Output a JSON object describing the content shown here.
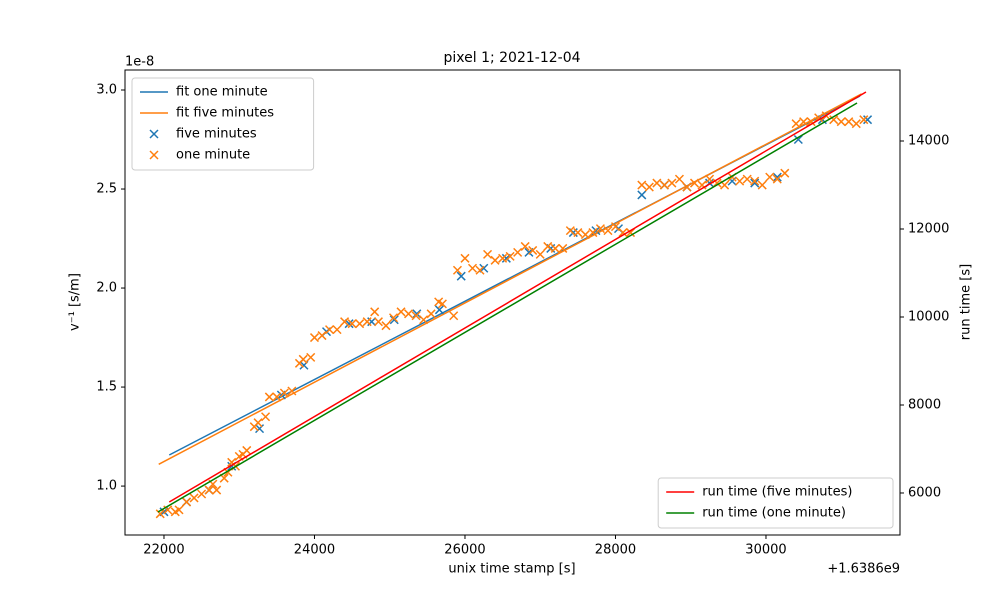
{
  "chart_data": {
    "type": "line",
    "title": "pixel 1; 2021-12-04",
    "xlabel": "unix time stamp [s]",
    "ylabel": "v⁻¹ [s/m]",
    "y2label": "run time [s]",
    "x_offset_label": "+1.6386e9",
    "y_offset_label": "1e-8",
    "xlim": [
      21482,
      31781
    ],
    "ylim": [
      0.753,
      3.101
    ],
    "y2lim": [
      5045,
      15614
    ],
    "xticks": [
      22000,
      24000,
      26000,
      28000,
      30000
    ],
    "yticks": [
      {
        "value": 1,
        "label": "1.0"
      },
      {
        "value": 1.5,
        "label": "1.5"
      },
      {
        "value": 2,
        "label": "2.0"
      },
      {
        "value": 2.5,
        "label": "2.5"
      },
      {
        "value": 3,
        "label": "3.0"
      }
    ],
    "y2ticks": [
      6000,
      8000,
      10000,
      12000,
      14000
    ],
    "legend": "upper left",
    "legend2": "lower right",
    "series": [
      {
        "name": "fit one minute",
        "type": "line",
        "color": "#1f77b4",
        "x": [
          22070,
          31250
        ],
        "values": [
          1.157,
          2.97
        ]
      },
      {
        "name": "fit five minutes",
        "type": "line",
        "color": "#ff7f0e",
        "x": [
          21930,
          31270
        ],
        "values": [
          1.11,
          2.98
        ]
      },
      {
        "name": "five minutes",
        "type": "scatter",
        "color": "#1f77b4",
        "x": [
          22000,
          22300,
          22600,
          22900,
          23270,
          23560,
          23860,
          24160,
          24460,
          24760,
          25060,
          25360,
          25660,
          25950,
          26250,
          26550,
          26850,
          27140,
          27440,
          27740,
          28040,
          28350,
          28650,
          28950,
          29250,
          29550,
          29850,
          30150,
          30430,
          30750,
          31350
        ],
        "values": [
          0.87,
          0.92,
          0.98,
          1.1,
          1.29,
          1.46,
          1.61,
          1.78,
          1.82,
          1.83,
          1.84,
          1.87,
          1.89,
          2.06,
          2.1,
          2.15,
          2.18,
          2.2,
          2.28,
          2.29,
          2.3,
          2.47,
          2.52,
          2.51,
          2.53,
          2.54,
          2.53,
          2.56,
          2.75,
          2.85,
          2.85
        ]
      },
      {
        "name": "one minute",
        "type": "scatter",
        "color": "#ff7f0e",
        "x": [
          21950,
          22050,
          22150,
          22200,
          22300,
          22400,
          22500,
          22600,
          22650,
          22700,
          22800,
          22850,
          22900,
          22950,
          23000,
          23050,
          23100,
          23200,
          23250,
          23350,
          23400,
          23500,
          23600,
          23700,
          23800,
          23850,
          23950,
          24000,
          24100,
          24200,
          24300,
          24400,
          24500,
          24600,
          24700,
          24800,
          24850,
          24950,
          25050,
          25150,
          25250,
          25350,
          25450,
          25550,
          25650,
          25700,
          25850,
          25900,
          26000,
          26100,
          26200,
          26300,
          26400,
          26500,
          26600,
          26700,
          26800,
          26900,
          27000,
          27100,
          27200,
          27300,
          27400,
          27500,
          27600,
          27700,
          27800,
          27900,
          28000,
          28100,
          28200,
          28350,
          28450,
          28550,
          28650,
          28750,
          28850,
          28950,
          29050,
          29150,
          29250,
          29350,
          29450,
          29550,
          29650,
          29750,
          29850,
          29950,
          30050,
          30150,
          30250,
          30400,
          30500,
          30600,
          30700,
          30800,
          30900,
          31000,
          31100,
          31200,
          31300
        ],
        "values": [
          0.86,
          0.88,
          0.87,
          0.88,
          0.92,
          0.94,
          0.96,
          0.98,
          1.01,
          0.98,
          1.04,
          1.07,
          1.12,
          1.1,
          1.15,
          1.16,
          1.18,
          1.3,
          1.32,
          1.35,
          1.45,
          1.45,
          1.47,
          1.48,
          1.62,
          1.64,
          1.65,
          1.75,
          1.76,
          1.79,
          1.79,
          1.83,
          1.82,
          1.82,
          1.83,
          1.88,
          1.83,
          1.81,
          1.85,
          1.88,
          1.87,
          1.86,
          1.84,
          1.87,
          1.93,
          1.92,
          1.86,
          2.09,
          2.15,
          2.1,
          2.09,
          2.17,
          2.14,
          2.15,
          2.16,
          2.18,
          2.21,
          2.19,
          2.17,
          2.21,
          2.2,
          2.2,
          2.29,
          2.28,
          2.27,
          2.28,
          2.3,
          2.29,
          2.31,
          2.28,
          2.28,
          2.52,
          2.51,
          2.53,
          2.52,
          2.53,
          2.55,
          2.51,
          2.53,
          2.52,
          2.55,
          2.53,
          2.52,
          2.56,
          2.54,
          2.55,
          2.54,
          2.52,
          2.56,
          2.55,
          2.58,
          2.83,
          2.84,
          2.84,
          2.86,
          2.87,
          2.85,
          2.84,
          2.84,
          2.83,
          2.85
        ]
      },
      {
        "name": "run time (five minutes)",
        "type": "line",
        "axis": "y2",
        "color": "#ff0000",
        "x": [
          22070,
          31329
        ],
        "values": [
          5795,
          15114
        ]
      },
      {
        "name": "run time (one minute)",
        "type": "line",
        "axis": "y2",
        "color": "#008000",
        "x": [
          21920,
          31210
        ],
        "values": [
          5568,
          14864
        ]
      }
    ]
  }
}
